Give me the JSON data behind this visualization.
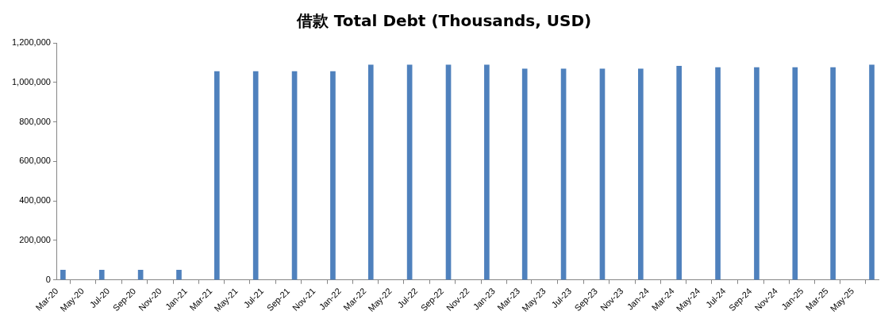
{
  "chart_data": {
    "type": "bar",
    "title": "借款 Total Debt (Thousands, USD)",
    "x": [
      "2020-03-15",
      "2020-06-15",
      "2020-09-15",
      "2020-12-15",
      "2021-03-15",
      "2021-06-15",
      "2021-09-15",
      "2021-12-15",
      "2022-03-15",
      "2022-06-15",
      "2022-09-15",
      "2022-12-15",
      "2023-03-15",
      "2023-06-15",
      "2023-09-15",
      "2023-12-15",
      "2024-03-15",
      "2024-06-15",
      "2024-09-15",
      "2024-12-15",
      "2025-03-15",
      "2025-06-15"
    ],
    "values": [
      50000,
      50000,
      50000,
      50000,
      1055000,
      1055000,
      1055000,
      1055000,
      1088000,
      1088000,
      1088000,
      1088000,
      1068000,
      1068000,
      1068000,
      1068000,
      1082000,
      1075000,
      1075000,
      1075000,
      1075000,
      1088000
    ],
    "color": "#4f81bd",
    "xlim": [
      "2020-03",
      "2025-07"
    ],
    "xticks": [
      {
        "value": "2020-03",
        "label": "Mar-20"
      },
      {
        "value": "2020-05",
        "label": "May-20"
      },
      {
        "value": "2020-07",
        "label": "Jul-20"
      },
      {
        "value": "2020-09",
        "label": "Sep-20"
      },
      {
        "value": "2020-11",
        "label": "Nov-20"
      },
      {
        "value": "2021-01",
        "label": "Jan-21"
      },
      {
        "value": "2021-03",
        "label": "Mar-21"
      },
      {
        "value": "2021-05",
        "label": "May-21"
      },
      {
        "value": "2021-07",
        "label": "Jul-21"
      },
      {
        "value": "2021-09",
        "label": "Sep-21"
      },
      {
        "value": "2021-11",
        "label": "Nov-21"
      },
      {
        "value": "2022-01",
        "label": "Jan-22"
      },
      {
        "value": "2022-03",
        "label": "Mar-22"
      },
      {
        "value": "2022-05",
        "label": "May-22"
      },
      {
        "value": "2022-07",
        "label": "Jul-22"
      },
      {
        "value": "2022-09",
        "label": "Sep-22"
      },
      {
        "value": "2022-11",
        "label": "Nov-22"
      },
      {
        "value": "2023-01",
        "label": "Jan-23"
      },
      {
        "value": "2023-03",
        "label": "Mar-23"
      },
      {
        "value": "2023-05",
        "label": "May-23"
      },
      {
        "value": "2023-07",
        "label": "Jul-23"
      },
      {
        "value": "2023-09",
        "label": "Sep-23"
      },
      {
        "value": "2023-11",
        "label": "Nov-23"
      },
      {
        "value": "2024-01",
        "label": "Jan-24"
      },
      {
        "value": "2024-03",
        "label": "Mar-24"
      },
      {
        "value": "2024-05",
        "label": "May-24"
      },
      {
        "value": "2024-07",
        "label": "Jul-24"
      },
      {
        "value": "2024-09",
        "label": "Sep-24"
      },
      {
        "value": "2024-11",
        "label": "Nov-24"
      },
      {
        "value": "2025-01",
        "label": "Jan-25"
      },
      {
        "value": "2025-03",
        "label": "Mar-25"
      },
      {
        "value": "2025-05",
        "label": "May-25"
      }
    ],
    "ylim": [
      0,
      1200000
    ],
    "yticks": [
      {
        "value": 0,
        "label": "0"
      },
      {
        "value": 200000,
        "label": "200,000"
      },
      {
        "value": 400000,
        "label": "400,000"
      },
      {
        "value": 600000,
        "label": "600,000"
      },
      {
        "value": 800000,
        "label": "800,000"
      },
      {
        "value": 1000000,
        "label": "1,000,000"
      },
      {
        "value": 1200000,
        "label": "1,200,000"
      }
    ],
    "grid": false,
    "legend": false
  }
}
